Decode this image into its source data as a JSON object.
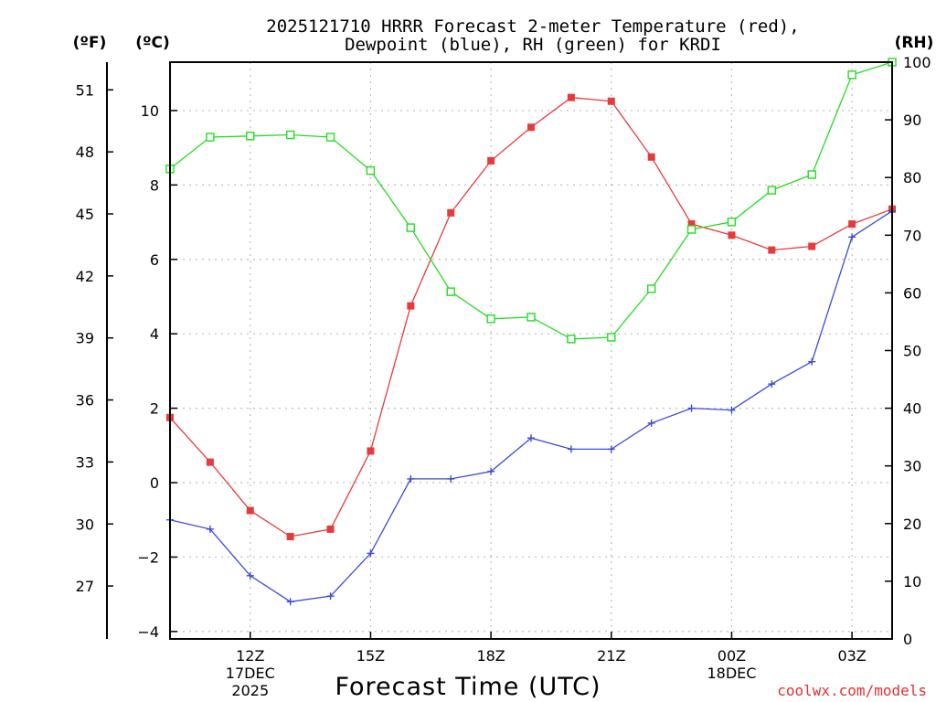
{
  "chart_data": {
    "type": "line",
    "title": {
      "line1": "2025121710 HRRR Forecast 2-meter Temperature (red),",
      "line2": "Dewpoint (blue), RH (green) for KRDI"
    },
    "xlabel": "Forecast Time (UTC)",
    "unit_labels": {
      "fahrenheit": "(ºF)",
      "celsius": "(ºC)",
      "rh": "(RH)"
    },
    "x": [
      10,
      11,
      12,
      13,
      14,
      15,
      16,
      17,
      18,
      19,
      20,
      21,
      22,
      23,
      24,
      25,
      26,
      27,
      28
    ],
    "x_range": [
      10,
      28
    ],
    "x_ticks": [
      {
        "x": 12,
        "label": "12Z",
        "sub1": "17DEC",
        "sub2": "2025"
      },
      {
        "x": 15,
        "label": "15Z",
        "sub1": "",
        "sub2": ""
      },
      {
        "x": 18,
        "label": "18Z",
        "sub1": "",
        "sub2": ""
      },
      {
        "x": 21,
        "label": "21Z",
        "sub1": "",
        "sub2": ""
      },
      {
        "x": 24,
        "label": "00Z",
        "sub1": "18DEC",
        "sub2": ""
      },
      {
        "x": 27,
        "label": "03Z",
        "sub1": "",
        "sub2": ""
      }
    ],
    "ylim_celsius": [
      -4.2,
      11.3
    ],
    "y_ticks_celsius": [
      -4,
      -2,
      0,
      2,
      4,
      6,
      8,
      10
    ],
    "y_ticks_fahrenheit": [
      27,
      30,
      33,
      36,
      39,
      42,
      45,
      48,
      51
    ],
    "ylim_rh": [
      0,
      100
    ],
    "y_ticks_rh": [
      0,
      10,
      20,
      30,
      40,
      50,
      60,
      70,
      80,
      90,
      100
    ],
    "series": [
      {
        "name": "2-meter Temperature",
        "color": "#e83a3a",
        "axis": "celsius",
        "marker": "filled-square",
        "values": [
          1.75,
          0.55,
          -0.75,
          -1.45,
          -1.25,
          0.85,
          4.75,
          7.25,
          8.65,
          9.55,
          10.35,
          10.25,
          8.75,
          6.95,
          6.65,
          6.25,
          6.35,
          6.95,
          7.35
        ]
      },
      {
        "name": "Dewpoint",
        "color": "#3a4bd8",
        "axis": "celsius",
        "marker": "plus",
        "values": [
          -1.0,
          -1.25,
          -2.5,
          -3.2,
          -3.05,
          -1.9,
          0.1,
          0.1,
          0.3,
          1.2,
          0.9,
          0.9,
          1.6,
          2.0,
          1.95,
          2.65,
          3.25,
          6.6,
          7.3
        ]
      },
      {
        "name": "RH",
        "color": "#22dd22",
        "axis": "rh",
        "marker": "open-square",
        "values": [
          81.5,
          87.0,
          87.2,
          87.4,
          87.0,
          81.2,
          71.3,
          60.2,
          55.5,
          55.8,
          52.0,
          52.3,
          60.7,
          71.0,
          72.3,
          77.8,
          80.5,
          97.8,
          100.0
        ]
      }
    ]
  },
  "watermark": "coolwx.com/models"
}
